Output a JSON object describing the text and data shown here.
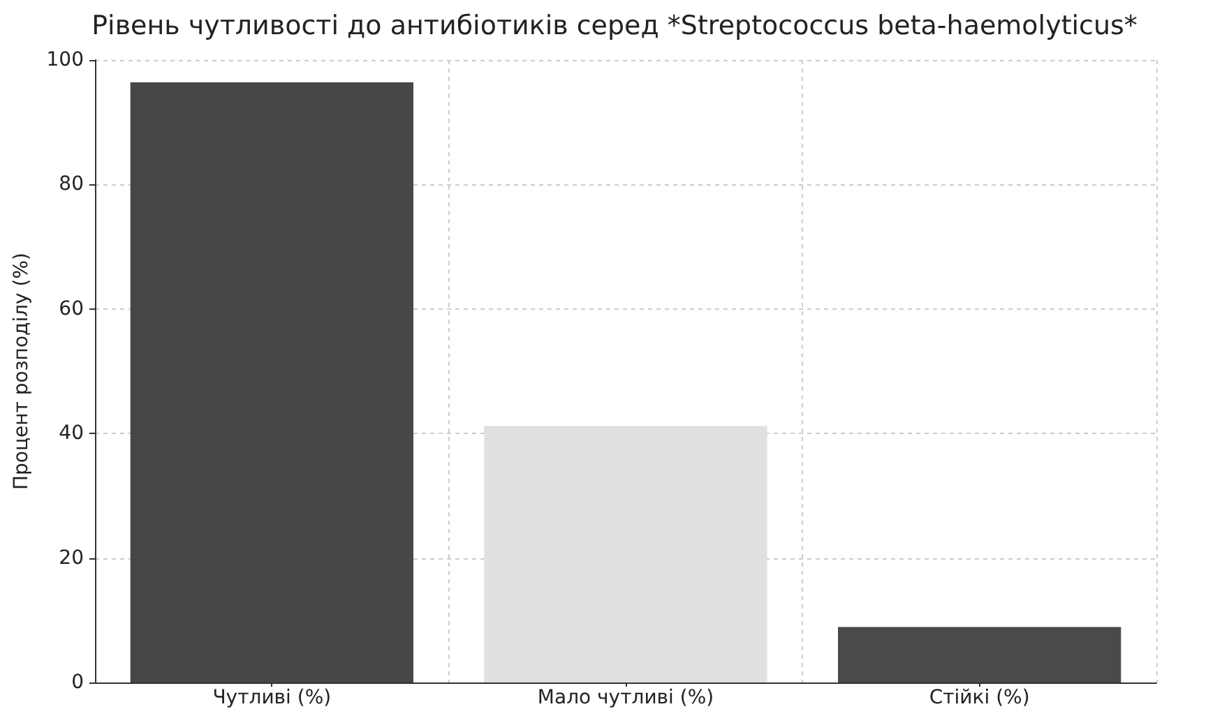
{
  "chart_data": {
    "type": "bar",
    "title": "Рівень чутливості до антибіотиків серед *Streptococcus beta-haemolyticus*",
    "ylabel": "Процент розподілу (%)",
    "categories": [
      "Чутливі (%)",
      "Мало чутливі (%)",
      "Стійкі (%)"
    ],
    "values": [
      96.4,
      41.2,
      8.9
    ],
    "colors": [
      "#474747",
      "#e0e0e0",
      "#4a4a4a"
    ],
    "ylim": [
      0,
      100
    ],
    "yticks": [
      0,
      20,
      40,
      60,
      80,
      100
    ],
    "grid": true
  }
}
